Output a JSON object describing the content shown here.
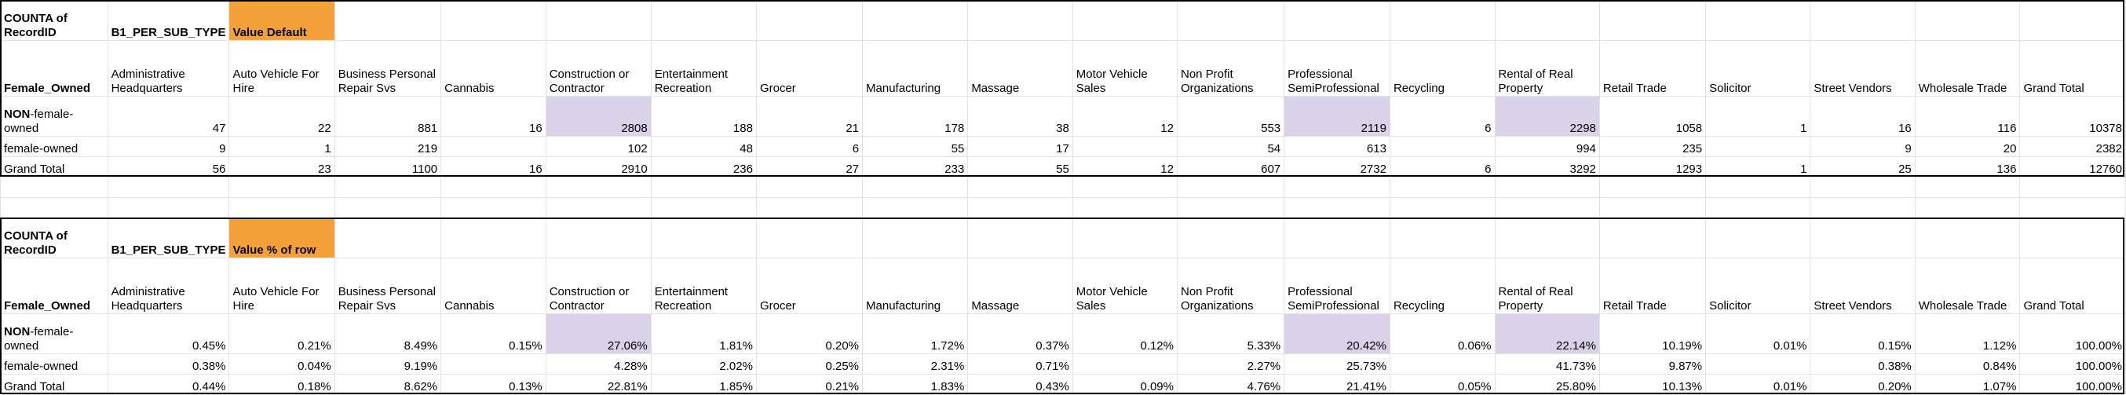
{
  "tables": [
    {
      "corner": "COUNTA of RecordID",
      "field": "B1_PER_SUB_TYPE",
      "value_label": "Value Default",
      "row_header": "Female_Owned",
      "columns": [
        "Administrative Headquarters",
        "Auto Vehicle For Hire",
        "Business Personal Repair Svs",
        "Cannabis",
        "Construction or Contractor",
        "Entertainment Recreation",
        "Grocer",
        "Manufacturing",
        "Massage",
        "Motor Vehicle Sales",
        "Non Profit Organizations",
        "Professional SemiProfessional",
        "Recycling",
        "Rental of Real Property",
        "Retail Trade",
        "Solicitor",
        "Street Vendors",
        "Wholesale Trade",
        "Grand Total"
      ],
      "rows": [
        {
          "label": "NON-female-owned",
          "values": [
            "47",
            "22",
            "881",
            "16",
            "2808",
            "188",
            "21",
            "178",
            "38",
            "12",
            "553",
            "2119",
            "6",
            "2298",
            "1058",
            "1",
            "16",
            "116",
            "10378"
          ]
        },
        {
          "label": "female-owned",
          "values": [
            "9",
            "1",
            "219",
            "",
            "102",
            "48",
            "6",
            "55",
            "17",
            "",
            "54",
            "613",
            "",
            "994",
            "235",
            "",
            "9",
            "20",
            "2382"
          ]
        },
        {
          "label": "Grand Total",
          "values": [
            "56",
            "23",
            "1100",
            "16",
            "2910",
            "236",
            "27",
            "233",
            "55",
            "12",
            "607",
            "2732",
            "6",
            "3292",
            "1293",
            "1",
            "25",
            "136",
            "12760"
          ]
        }
      ]
    },
    {
      "corner": "COUNTA of RecordID",
      "field": "B1_PER_SUB_TYPE",
      "value_label": "Value % of row",
      "row_header": "Female_Owned",
      "columns": [
        "Administrative Headquarters",
        "Auto Vehicle For Hire",
        "Business Personal Repair Svs",
        "Cannabis",
        "Construction or Contractor",
        "Entertainment Recreation",
        "Grocer",
        "Manufacturing",
        "Massage",
        "Motor Vehicle Sales",
        "Non Profit Organizations",
        "Professional SemiProfessional",
        "Recycling",
        "Rental of Real Property",
        "Retail Trade",
        "Solicitor",
        "Street Vendors",
        "Wholesale Trade",
        "Grand Total"
      ],
      "rows": [
        {
          "label": "NON-female-owned",
          "values": [
            "0.45%",
            "0.21%",
            "8.49%",
            "0.15%",
            "27.06%",
            "1.81%",
            "0.20%",
            "1.72%",
            "0.37%",
            "0.12%",
            "5.33%",
            "20.42%",
            "0.06%",
            "22.14%",
            "10.19%",
            "0.01%",
            "0.15%",
            "1.12%",
            "100.00%"
          ]
        },
        {
          "label": "female-owned",
          "values": [
            "0.38%",
            "0.04%",
            "9.19%",
            "",
            "4.28%",
            "2.02%",
            "0.25%",
            "2.31%",
            "0.71%",
            "",
            "2.27%",
            "25.73%",
            "",
            "41.73%",
            "9.87%",
            "",
            "0.38%",
            "0.84%",
            "100.00%"
          ]
        },
        {
          "label": "Grand Total",
          "values": [
            "0.44%",
            "0.18%",
            "8.62%",
            "0.13%",
            "22.81%",
            "1.85%",
            "0.21%",
            "1.83%",
            "0.43%",
            "0.09%",
            "4.76%",
            "21.41%",
            "0.05%",
            "25.80%",
            "10.13%",
            "0.01%",
            "0.20%",
            "1.07%",
            "100.00%"
          ]
        }
      ]
    }
  ],
  "colors": {
    "orange": "#f4a13a",
    "highlight": "#d9d2e9",
    "border": "#000000",
    "gridline": "#e3e3e3"
  }
}
